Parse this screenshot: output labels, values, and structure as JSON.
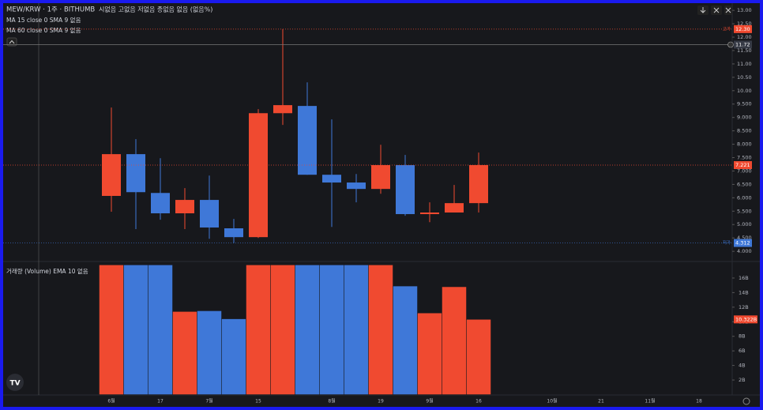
{
  "chart_data": [
    {
      "type": "candlestick",
      "title": "MEW/KRW · 1주 · BITHUMB",
      "subtitle": "시없음 고없음 저없음 종없음 없음 (없음%)",
      "indicators": [
        "MA 15 close 0 SMA 9 없음",
        "MA 60 close 0 SMA 9 없음"
      ],
      "categories": [
        "6월",
        null,
        "17",
        null,
        "7월",
        null,
        "15",
        null,
        null,
        "8월",
        null,
        "19",
        null,
        "9월",
        null,
        "16",
        null,
        null,
        "10월",
        null,
        "21",
        null,
        "11월",
        null,
        "18",
        null
      ],
      "open": [
        6.07,
        7.63,
        6.18,
        5.42,
        5.92,
        4.86,
        4.53,
        9.16,
        9.43,
        6.86,
        6.57,
        6.33,
        7.22,
        5.39,
        5.45,
        5.8,
        null,
        null,
        null,
        null,
        null,
        null,
        null,
        null,
        null,
        null
      ],
      "high": [
        9.37,
        8.19,
        7.48,
        6.36,
        6.83,
        5.21,
        9.31,
        12.3,
        10.31,
        8.93,
        6.89,
        7.98,
        7.6,
        5.83,
        6.48,
        7.69,
        null,
        null,
        null,
        null,
        null,
        null,
        null,
        null,
        null,
        null
      ],
      "low": [
        5.48,
        4.83,
        5.18,
        4.83,
        4.47,
        4.312,
        4.5,
        8.72,
        6.86,
        4.91,
        5.83,
        6.15,
        5.33,
        5.09,
        5.45,
        5.45,
        null,
        null,
        null,
        null,
        null,
        null,
        null,
        null,
        null,
        null
      ],
      "close": [
        7.63,
        6.21,
        5.42,
        5.92,
        4.89,
        4.53,
        9.16,
        9.46,
        6.86,
        6.57,
        6.33,
        7.22,
        5.39,
        5.45,
        5.8,
        7.221,
        null,
        null,
        null,
        null,
        null,
        null,
        null,
        null,
        null,
        null
      ],
      "up_color": "#f04a30",
      "down_color": "#3f78d8",
      "ylim": [
        3.65,
        13.24
      ],
      "yticks": [
        {
          "value": 4,
          "label": "4.000"
        },
        {
          "value": 4.5,
          "label": "4.500"
        },
        {
          "value": 5,
          "label": "5.000"
        },
        {
          "value": 5.5,
          "label": "5.500"
        },
        {
          "value": 6,
          "label": "6.000"
        },
        {
          "value": 6.5,
          "label": "6.500"
        },
        {
          "value": 7,
          "label": "7.000"
        },
        {
          "value": 7.5,
          "label": "7.500"
        },
        {
          "value": 8,
          "label": "8.000"
        },
        {
          "value": 8.5,
          "label": "8.500"
        },
        {
          "value": 9,
          "label": "9.000"
        },
        {
          "value": 9.5,
          "label": "9.500"
        },
        {
          "value": 10,
          "label": "10.00"
        },
        {
          "value": 10.5,
          "label": "10.50"
        },
        {
          "value": 11,
          "label": "11.00"
        },
        {
          "value": 11.5,
          "label": "11.50"
        },
        {
          "value": 12,
          "label": "12.00"
        },
        {
          "value": 12.5,
          "label": "12.50"
        },
        {
          "value": 13,
          "label": "13.00"
        }
      ],
      "annotations": [
        {
          "label": "고가",
          "value": 12.3,
          "value_label": "12.30",
          "color": "#f04a30"
        },
        {
          "label": "저가",
          "value": 4.312,
          "color": "#3f78d8"
        }
      ],
      "crosshair": 11.72
    },
    {
      "type": "bar",
      "title": "거래량 (Volume) EMA 10 없음",
      "values": [
        17.8,
        17.8,
        17.8,
        11.4,
        11.5,
        10.4,
        17.8,
        17.8,
        17.8,
        17.8,
        17.8,
        17.8,
        14.9,
        11.2,
        14.8,
        10.322,
        null,
        null,
        null,
        null,
        null,
        null,
        null,
        null,
        null,
        null
      ],
      "ylim": [
        0,
        18
      ],
      "yticks": [
        {
          "value": 2,
          "label": "2B"
        },
        {
          "value": 4,
          "label": "4B"
        },
        {
          "value": 6,
          "label": "6B"
        },
        {
          "value": 8,
          "label": "8B"
        },
        {
          "value": 10,
          "label": "10B"
        },
        {
          "value": 12,
          "label": "12B"
        },
        {
          "value": 14,
          "label": "14B"
        },
        {
          "value": 16,
          "label": "16B"
        }
      ],
      "annotations": [
        {
          "value": 10.322,
          "label": "10.322B"
        }
      ]
    }
  ]
}
